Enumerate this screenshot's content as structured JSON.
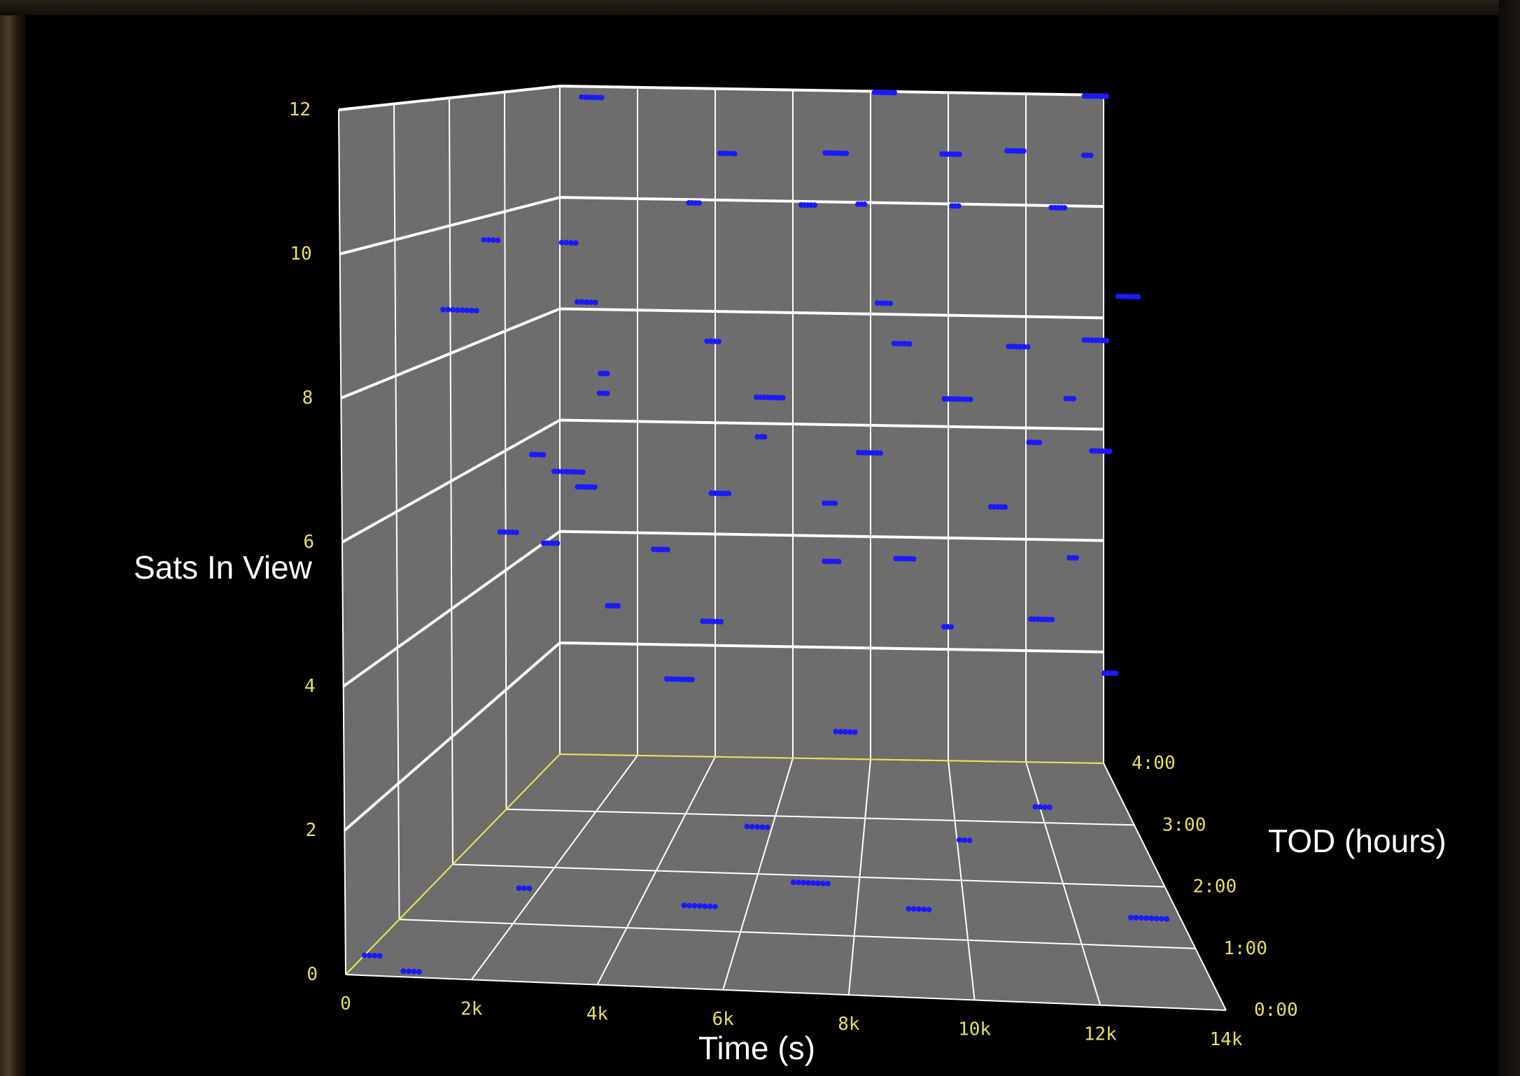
{
  "chart_data": {
    "type": "scatter",
    "projection": "3d-perspective",
    "colors": {
      "points": "#1a1aff",
      "panels": "#6d6d6d",
      "gridlines": "#ffffff",
      "tick_labels": "#e8e05a",
      "axis_titles": "#ffffff",
      "background": "#000000"
    },
    "axes": {
      "x": {
        "title": "Time (s)",
        "range": [
          0,
          14000
        ],
        "ticks": [
          "0",
          "2k",
          "4k",
          "6k",
          "8k",
          "10k",
          "12k",
          "14k"
        ]
      },
      "y": {
        "title": "Sats In View",
        "range": [
          0,
          12
        ],
        "ticks": [
          "0",
          "2",
          "4",
          "6",
          "8",
          "10",
          "12"
        ]
      },
      "z": {
        "title": "TOD (hours)",
        "range": [
          0,
          4
        ],
        "ticks": [
          "0:00",
          "1:00",
          "2:00",
          "3:00",
          "4:00"
        ]
      }
    },
    "grid": true,
    "legend": "none",
    "series": [
      {
        "points": [
          [
            0.0,
            4,
            3.7
          ],
          [
            0.06,
            5,
            3.7
          ],
          [
            0.1,
            7,
            3.7
          ],
          [
            0.12,
            3,
            3.6
          ],
          [
            0.2,
            4,
            3.6
          ],
          [
            0.3,
            5,
            3.6
          ],
          [
            0.38,
            6,
            3.6
          ],
          [
            0.24,
            2,
            3.3
          ],
          [
            0.3,
            3,
            3.3
          ],
          [
            0.5,
            4,
            3.4
          ],
          [
            0.5,
            5,
            3.4
          ],
          [
            0.56,
            6,
            3.2
          ],
          [
            0.62,
            4,
            3.5
          ],
          [
            0.7,
            3,
            3.3
          ],
          [
            0.78,
            5,
            3.4
          ],
          [
            0.85,
            6,
            3.6
          ],
          [
            0.85,
            3,
            3.5
          ],
          [
            0.92,
            4,
            3.6
          ],
          [
            0.95,
            6,
            3.4
          ],
          [
            0.98,
            2,
            3.6
          ],
          [
            0.05,
            6,
            2.9
          ],
          [
            0.15,
            7,
            3.0
          ],
          [
            0.4,
            7,
            3.0
          ],
          [
            0.7,
            7,
            3.1
          ],
          [
            0.9,
            7,
            3.2
          ],
          [
            0.04,
            5,
            2.4
          ],
          [
            0.12,
            6,
            2.4
          ],
          [
            0.33,
            8,
            2.8
          ],
          [
            0.62,
            8,
            2.9
          ],
          [
            0.8,
            8,
            2.9
          ],
          [
            0.93,
            8,
            3.2
          ],
          [
            0.1,
            10,
            1.2
          ],
          [
            0.2,
            10,
            1.2
          ],
          [
            0.06,
            9,
            1.0
          ],
          [
            0.2,
            9,
            1.6
          ],
          [
            0.6,
            9,
            2.0
          ],
          [
            0.96,
            9,
            2.6
          ],
          [
            0.0,
            0,
            0.35
          ],
          [
            0.18,
            1,
            0.4
          ],
          [
            0.38,
            1,
            0.2
          ],
          [
            0.45,
            2,
            0.4
          ],
          [
            0.64,
            1,
            0.3
          ],
          [
            0.7,
            2,
            0.3
          ],
          [
            0.9,
            1,
            0.3
          ],
          [
            0.06,
            0,
            0.1
          ],
          [
            0.5,
            1,
            0.7
          ],
          [
            0.55,
            3,
            1.0
          ],
          [
            0.8,
            2,
            1.0
          ],
          [
            0.15,
            12,
            2.6
          ],
          [
            0.33,
            11,
            3.3
          ],
          [
            0.5,
            11,
            3.5
          ],
          [
            0.7,
            11,
            3.6
          ],
          [
            0.95,
            11,
            3.7
          ],
          [
            0.25,
            10,
            3.8
          ],
          [
            0.45,
            10,
            3.8
          ],
          [
            0.55,
            10,
            3.9
          ],
          [
            0.72,
            10,
            3.9
          ],
          [
            0.9,
            10,
            3.9
          ],
          [
            0.58,
            12,
            3.9
          ],
          [
            0.82,
            11,
            3.9
          ],
          [
            0.96,
            12,
            3.9
          ]
        ],
        "point_encoding": "x and z are fractions of the Time and TOD axis ranges; y is satellites in view",
        "note_shape": "dense horizontal streaks at each integer count from 3 to 11, thickest at 8 and 9"
      }
    ]
  }
}
